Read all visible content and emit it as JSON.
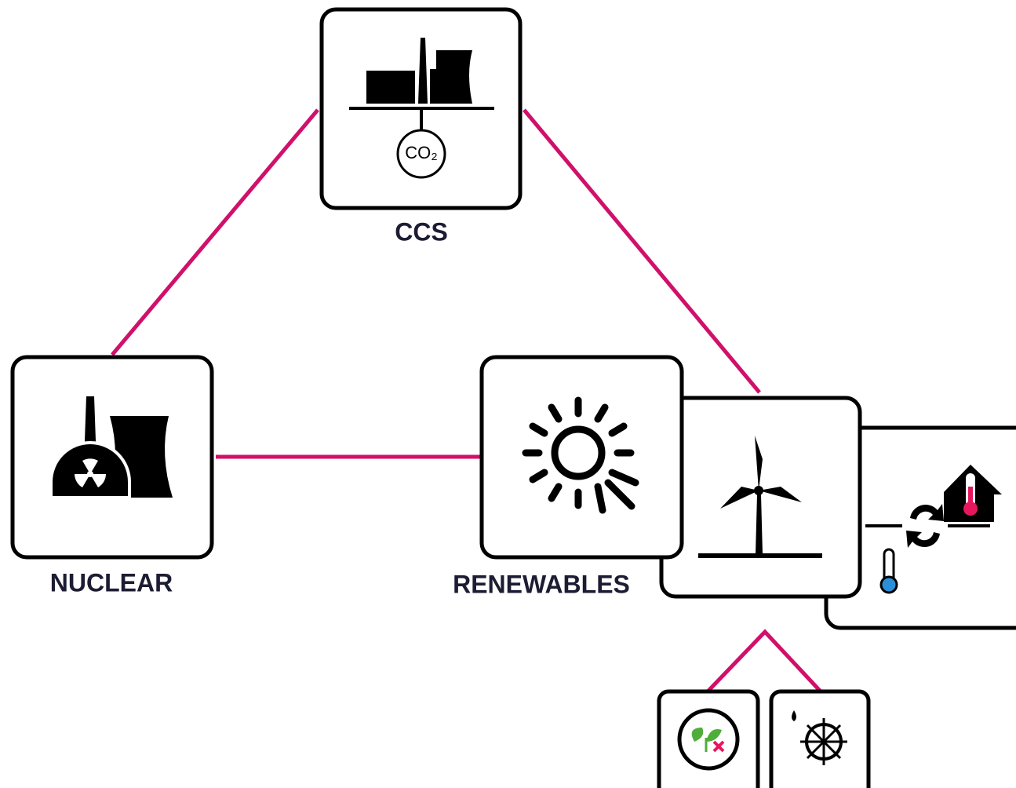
{
  "nodes": [
    {
      "label": "CCS",
      "icon_text": "CO₂"
    },
    {
      "label": "NUCLEAR"
    },
    {
      "label": "RENEWABLES"
    }
  ]
}
